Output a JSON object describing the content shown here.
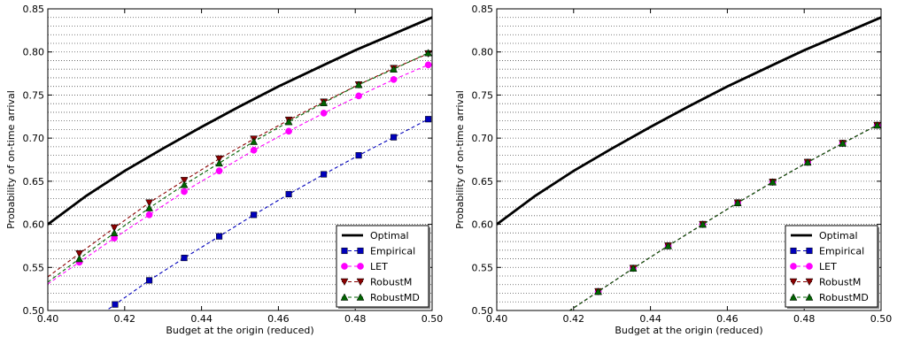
{
  "chart_data": [
    {
      "type": "line",
      "title": "",
      "xlabel": "Budget at the origin (reduced)",
      "ylabel": "Probability of on-time arrival",
      "xlim": [
        0.4,
        0.5
      ],
      "ylim": [
        0.5,
        0.85
      ],
      "xticks": [
        0.4,
        0.42,
        0.44,
        0.46,
        0.48,
        0.5
      ],
      "xtick_labels": [
        "0.40",
        "0.42",
        "0.44",
        "0.46",
        "0.48",
        "0.50"
      ],
      "yticks": [
        0.5,
        0.55,
        0.6,
        0.65,
        0.7,
        0.75,
        0.8,
        0.85
      ],
      "ytick_labels": [
        "0.50",
        "0.55",
        "0.60",
        "0.65",
        "0.70",
        "0.75",
        "0.80",
        "0.85"
      ],
      "grid": "horizontal dotted",
      "legend_position": "bottom-right",
      "series": [
        {
          "name": "Optimal",
          "color": "#000000",
          "marker": "none",
          "style": "solid",
          "x": [
            0.4,
            0.41,
            0.42,
            0.43,
            0.44,
            0.45,
            0.46,
            0.47,
            0.48,
            0.49,
            0.5
          ],
          "y": [
            0.6,
            0.633,
            0.662,
            0.688,
            0.713,
            0.737,
            0.76,
            0.781,
            0.802,
            0.821,
            0.84
          ]
        },
        {
          "name": "Empirical",
          "color": "#0000bb",
          "marker": "square",
          "style": "dashed",
          "x": [
            0.4175,
            0.4264,
            0.4355,
            0.4446,
            0.4536,
            0.4627,
            0.4718,
            0.4809,
            0.49,
            0.499
          ],
          "y": [
            0.507,
            0.535,
            0.561,
            0.586,
            0.611,
            0.635,
            0.658,
            0.68,
            0.701,
            0.722
          ]
        },
        {
          "name": "LET",
          "color": "#ff00ff",
          "marker": "circle",
          "style": "dashed",
          "x": [
            0.4082,
            0.4173,
            0.4264,
            0.4355,
            0.4446,
            0.4536,
            0.4627,
            0.4718,
            0.4809,
            0.49,
            0.499
          ],
          "y": [
            0.556,
            0.584,
            0.611,
            0.638,
            0.662,
            0.686,
            0.708,
            0.729,
            0.749,
            0.768,
            0.785
          ]
        },
        {
          "name": "RobustM",
          "color": "#8b0000",
          "marker": "triangle-down",
          "style": "dashed",
          "x": [
            0.4082,
            0.4173,
            0.4264,
            0.4355,
            0.4446,
            0.4536,
            0.4627,
            0.4718,
            0.4809,
            0.49,
            0.499
          ],
          "y": [
            0.566,
            0.596,
            0.625,
            0.651,
            0.676,
            0.699,
            0.721,
            0.742,
            0.762,
            0.781,
            0.798
          ]
        },
        {
          "name": "RobustMD",
          "color": "#006400",
          "marker": "triangle-up",
          "style": "dashed",
          "x": [
            0.4082,
            0.4173,
            0.4264,
            0.4355,
            0.4446,
            0.4536,
            0.4627,
            0.4718,
            0.4809,
            0.49,
            0.499
          ],
          "y": [
            0.56,
            0.59,
            0.619,
            0.646,
            0.671,
            0.696,
            0.719,
            0.741,
            0.762,
            0.78,
            0.799
          ]
        }
      ]
    },
    {
      "type": "line",
      "title": "",
      "xlabel": "Budget at the origin (reduced)",
      "ylabel": "Probability of on-time arrival",
      "xlim": [
        0.4,
        0.5
      ],
      "ylim": [
        0.5,
        0.85
      ],
      "xticks": [
        0.4,
        0.42,
        0.44,
        0.46,
        0.48,
        0.5
      ],
      "xtick_labels": [
        "0.40",
        "0.42",
        "0.44",
        "0.46",
        "0.48",
        "0.50"
      ],
      "yticks": [
        0.5,
        0.55,
        0.6,
        0.65,
        0.7,
        0.75,
        0.8,
        0.85
      ],
      "ytick_labels": [
        "0.50",
        "0.55",
        "0.60",
        "0.65",
        "0.70",
        "0.75",
        "0.80",
        "0.85"
      ],
      "grid": "horizontal dotted",
      "legend_position": "bottom-right",
      "series": [
        {
          "name": "Optimal",
          "color": "#000000",
          "marker": "none",
          "style": "solid",
          "x": [
            0.4,
            0.41,
            0.42,
            0.43,
            0.44,
            0.45,
            0.46,
            0.47,
            0.48,
            0.49,
            0.5
          ],
          "y": [
            0.6,
            0.633,
            0.662,
            0.688,
            0.713,
            0.737,
            0.76,
            0.781,
            0.802,
            0.821,
            0.84
          ]
        },
        {
          "name": "Empirical",
          "color": "#0000bb",
          "marker": "square",
          "style": "dashed",
          "x": [
            0.4264,
            0.4355,
            0.4446,
            0.4536,
            0.4627,
            0.4718,
            0.4809,
            0.49,
            0.499
          ],
          "y": [
            0.522,
            0.549,
            0.575,
            0.6,
            0.625,
            0.649,
            0.672,
            0.694,
            0.715
          ]
        },
        {
          "name": "LET",
          "color": "#ff00ff",
          "marker": "circle",
          "style": "dashed",
          "x": [
            0.4264,
            0.4355,
            0.4446,
            0.4536,
            0.4627,
            0.4718,
            0.4809,
            0.49,
            0.499
          ],
          "y": [
            0.522,
            0.549,
            0.575,
            0.6,
            0.625,
            0.649,
            0.672,
            0.694,
            0.715
          ]
        },
        {
          "name": "RobustM",
          "color": "#8b0000",
          "marker": "triangle-down",
          "style": "dashed",
          "x": [
            0.4264,
            0.4355,
            0.4446,
            0.4536,
            0.4627,
            0.4718,
            0.4809,
            0.49,
            0.499
          ],
          "y": [
            0.522,
            0.549,
            0.575,
            0.6,
            0.625,
            0.649,
            0.672,
            0.694,
            0.715
          ]
        },
        {
          "name": "RobustMD",
          "color": "#006400",
          "marker": "triangle-up",
          "style": "dashed",
          "x": [
            0.4264,
            0.4355,
            0.4446,
            0.4536,
            0.4627,
            0.4718,
            0.4809,
            0.49,
            0.499
          ],
          "y": [
            0.522,
            0.549,
            0.575,
            0.6,
            0.625,
            0.649,
            0.672,
            0.694,
            0.715
          ]
        }
      ]
    }
  ]
}
